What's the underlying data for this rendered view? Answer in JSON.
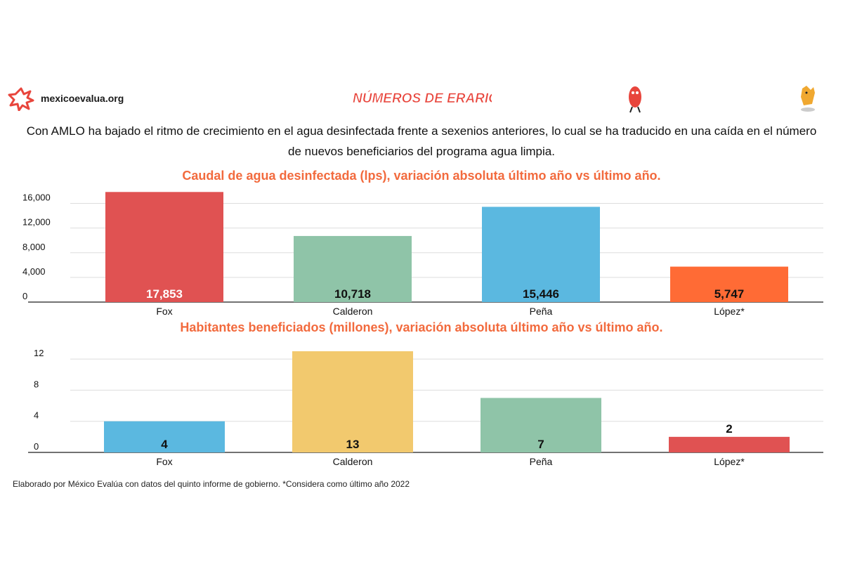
{
  "header": {
    "site": "mexicoevalua.org",
    "logo_text": "NÚMEROS DE ERARIO",
    "brand_color": "#e8453c"
  },
  "headline": "Con AMLO ha bajado el ritmo de crecimiento en el agua desinfectada frente a sexenios anteriores, lo cual se ha traducido en una caída en el número de nuevos beneficiarios del programa agua limpia.",
  "footnote": "Elaborado por México Evalúa con datos del quinto informe de gobierno. *Considera como último año 2022",
  "chart_data": [
    {
      "type": "bar",
      "title": "Caudal de agua desinfectada (lps),  variación absoluta último año vs último año.",
      "categories": [
        "Fox",
        "Calderon",
        "Peña",
        "López*"
      ],
      "values": [
        17853,
        10718,
        15446,
        5747
      ],
      "value_labels": [
        "17,853",
        "10,718",
        "15,446",
        "5,747"
      ],
      "colors": [
        "#e05252",
        "#8fc4a8",
        "#5bb8e0",
        "#ff6b35"
      ],
      "value_label_colors": [
        "#ffffff",
        "#111111",
        "#111111",
        "#111111"
      ],
      "ticks": [
        0,
        4000,
        8000,
        12000,
        16000
      ],
      "tick_labels": [
        "0",
        "4,000",
        "8,000",
        "12,000",
        "16,000"
      ],
      "ylim": [
        0,
        18000
      ],
      "grid": true
    },
    {
      "type": "bar",
      "title": "Habitantes beneficiados (millones), variación absoluta último año vs último año.",
      "categories": [
        "Fox",
        "Calderon",
        "Peña",
        "López*"
      ],
      "values": [
        4,
        13,
        7,
        2
      ],
      "value_labels": [
        "4",
        "13",
        "7",
        "2"
      ],
      "colors": [
        "#5bb8e0",
        "#f2c96e",
        "#8fc4a8",
        "#e05252"
      ],
      "value_label_colors": [
        "#111111",
        "#111111",
        "#111111",
        "#111111"
      ],
      "ticks": [
        0,
        4,
        8,
        12
      ],
      "tick_labels": [
        "0",
        "4",
        "8",
        "12"
      ],
      "ylim": [
        0,
        13
      ],
      "grid": true
    }
  ]
}
